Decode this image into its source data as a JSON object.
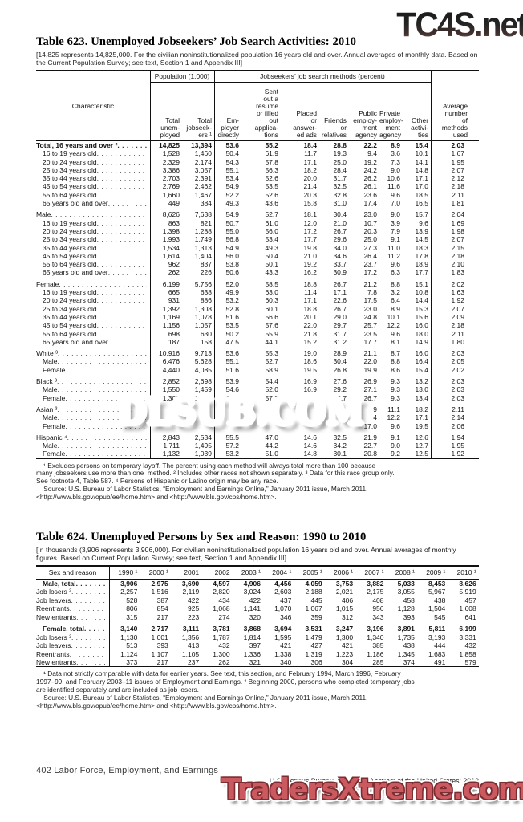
{
  "watermarks": {
    "top": "TC4S.net",
    "middle": "DLSUB.COM",
    "bottom": "TradersXtreme.com",
    "red_color": "#c41a20",
    "pink_color": "#cb5a60",
    "dark_color": "#242424"
  },
  "table623": {
    "title": "Table 623. Unemployed Jobseekers’ Job Search Activities: 2010",
    "subtitle": "[14,825 represents 14,825,000. For the civilian noninstitutionalized population 16 years old and over. Annual averages of monthly data. Based on the Current Population Survey; see text, Section 1 and Appendix III]",
    "header": {
      "characteristic": "Characteristic",
      "population_group": "Population (1,000)",
      "methods_group": "Jobseekers’ job search methods (percent)",
      "avg": "Average\nnumber\nof\nmethods\nused",
      "columns": [
        "Total\nunem-\nployed",
        "Total\njobseek-\ners ¹",
        "Em-\nployer\ndirectly",
        "Sent\nout a\nresume\nor filled\nout\napplica-\ntions",
        "Placed\nor\nanswer-\ned ads",
        "Friends\nor\nrelatives",
        "Public\nemploy-\nment\nagency",
        "Private\nemploy-\nment\nagency",
        "Other\nactivi-\nties"
      ]
    },
    "rows": [
      {
        "label": "Total, 16 years and over ²",
        "indent": 0,
        "bold": true,
        "values": [
          "14,825",
          "13,394",
          "53.6",
          "55.2",
          "18.4",
          "28.8",
          "22.2",
          "8.9",
          "15.4",
          "2.03"
        ]
      },
      {
        "label": "16 to 19 years old",
        "indent": 1,
        "values": [
          "1,528",
          "1,460",
          "50.4",
          "61.9",
          "11.7",
          "19.3",
          "9.4",
          "3.6",
          "10.1",
          "1.67"
        ]
      },
      {
        "label": "20 to 24 years old",
        "indent": 1,
        "values": [
          "2,329",
          "2,174",
          "54.3",
          "57.8",
          "17.1",
          "25.0",
          "19.2",
          "7.3",
          "14.1",
          "1.95"
        ]
      },
      {
        "label": "25 to 34 years old",
        "indent": 1,
        "values": [
          "3,386",
          "3,057",
          "55.1",
          "56.3",
          "18.2",
          "28.4",
          "24.2",
          "9.0",
          "14.8",
          "2.07"
        ]
      },
      {
        "label": "35 to 44 years old",
        "indent": 1,
        "values": [
          "2,703",
          "2,391",
          "53.4",
          "52.6",
          "20.0",
          "31.7",
          "26.2",
          "10.6",
          "17.1",
          "2.12"
        ]
      },
      {
        "label": "45 to 54 years old",
        "indent": 1,
        "values": [
          "2,769",
          "2,462",
          "54.9",
          "53.5",
          "21.4",
          "32.5",
          "26.1",
          "11.6",
          "17.0",
          "2.18"
        ]
      },
      {
        "label": "55 to 64 years old",
        "indent": 1,
        "values": [
          "1,660",
          "1,467",
          "52.2",
          "52.6",
          "20.3",
          "32.8",
          "23.6",
          "9.6",
          "18.5",
          "2.11"
        ]
      },
      {
        "label": "65 years old and over",
        "indent": 1,
        "values": [
          "449",
          "384",
          "49.3",
          "43.6",
          "15.8",
          "31.0",
          "17.4",
          "7.0",
          "16.5",
          "1.81"
        ]
      },
      {
        "label": "Male",
        "indent": 0,
        "gap": true,
        "values": [
          "8,626",
          "7,638",
          "54.9",
          "52.7",
          "18.1",
          "30.4",
          "23.0",
          "9.0",
          "15.7",
          "2.04"
        ]
      },
      {
        "label": "16 to 19 years old",
        "indent": 1,
        "values": [
          "863",
          "821",
          "50.7",
          "61.0",
          "12.0",
          "21.0",
          "10.7",
          "3.9",
          "9.6",
          "1.69"
        ]
      },
      {
        "label": "20 to 24 years old",
        "indent": 1,
        "values": [
          "1,398",
          "1,288",
          "55.0",
          "56.0",
          "17.2",
          "26.7",
          "20.3",
          "7.9",
          "13.9",
          "1.98"
        ]
      },
      {
        "label": "25 to 34 years old",
        "indent": 1,
        "values": [
          "1,993",
          "1,749",
          "56.8",
          "53.4",
          "17.7",
          "29.6",
          "25.0",
          "9.1",
          "14.5",
          "2.07"
        ]
      },
      {
        "label": "35 to 44 years old",
        "indent": 1,
        "values": [
          "1,534",
          "1,313",
          "54.9",
          "49.3",
          "19.8",
          "34.0",
          "27.3",
          "11.0",
          "18.3",
          "2.15"
        ]
      },
      {
        "label": "45 to 54 years old",
        "indent": 1,
        "values": [
          "1,614",
          "1,404",
          "56.0",
          "50.4",
          "21.0",
          "34.6",
          "26.4",
          "11.2",
          "17.8",
          "2.18"
        ]
      },
      {
        "label": "55 to 64 years old",
        "indent": 1,
        "values": [
          "962",
          "837",
          "53.8",
          "50.1",
          "19.2",
          "33.7",
          "23.7",
          "9.6",
          "18.9",
          "2.10"
        ]
      },
      {
        "label": "65 years old and over",
        "indent": 1,
        "values": [
          "262",
          "226",
          "50.6",
          "43.3",
          "16.2",
          "30.9",
          "17.2",
          "6.3",
          "17.7",
          "1.83"
        ]
      },
      {
        "label": "Female",
        "indent": 0,
        "gap": true,
        "values": [
          "6,199",
          "5,756",
          "52.0",
          "58.5",
          "18.8",
          "26.7",
          "21.2",
          "8.8",
          "15.1",
          "2.02"
        ]
      },
      {
        "label": "16 to 19 years old",
        "indent": 1,
        "values": [
          "665",
          "638",
          "49.9",
          "63.0",
          "11.4",
          "17.1",
          "7.8",
          "3.2",
          "10.8",
          "1.63"
        ]
      },
      {
        "label": "20 to 24 years old",
        "indent": 1,
        "values": [
          "931",
          "886",
          "53.2",
          "60.3",
          "17.1",
          "22.6",
          "17.5",
          "6.4",
          "14.4",
          "1.92"
        ]
      },
      {
        "label": "25 to 34 years old",
        "indent": 1,
        "values": [
          "1,392",
          "1,308",
          "52.8",
          "60.1",
          "18.8",
          "26.7",
          "23.0",
          "8.9",
          "15.3",
          "2.07"
        ]
      },
      {
        "label": "35 to 44 years old",
        "indent": 1,
        "values": [
          "1,169",
          "1,078",
          "51.6",
          "56.6",
          "20.1",
          "29.0",
          "24.8",
          "10.1",
          "15.6",
          "2.09"
        ]
      },
      {
        "label": "45 to 54 years old",
        "indent": 1,
        "values": [
          "1,156",
          "1,057",
          "53.5",
          "57.6",
          "22.0",
          "29.7",
          "25.7",
          "12.2",
          "16.0",
          "2.18"
        ]
      },
      {
        "label": "55 to 64 years old",
        "indent": 1,
        "values": [
          "698",
          "630",
          "50.2",
          "55.9",
          "21.8",
          "31.7",
          "23.5",
          "9.6",
          "18.0",
          "2.11"
        ]
      },
      {
        "label": "65 years old and over",
        "indent": 1,
        "values": [
          "187",
          "158",
          "47.5",
          "44.1",
          "15.2",
          "31.2",
          "17.7",
          "8.1",
          "14.9",
          "1.80"
        ]
      },
      {
        "label": "White ³",
        "indent": 0,
        "gap": true,
        "values": [
          "10,916",
          "9,713",
          "53.6",
          "55.3",
          "19.0",
          "28.9",
          "21.1",
          "8.7",
          "16.0",
          "2.03"
        ]
      },
      {
        "label": "Male",
        "indent": 1,
        "values": [
          "6,476",
          "5,628",
          "55.1",
          "52.7",
          "18.6",
          "30.4",
          "22.0",
          "8.8",
          "16.4",
          "2.05"
        ]
      },
      {
        "label": "Female",
        "indent": 1,
        "values": [
          "4,440",
          "4,085",
          "51.6",
          "58.9",
          "19.5",
          "26.8",
          "19.9",
          "8.6",
          "15.4",
          "2.02"
        ]
      },
      {
        "label": "Black ³",
        "indent": 0,
        "gap": true,
        "values": [
          "2,852",
          "2,698",
          "53.9",
          "54.4",
          "16.9",
          "27.6",
          "26.9",
          "9.3",
          "13.2",
          "2.03"
        ]
      },
      {
        "label": "Male",
        "indent": 1,
        "values": [
          "1,550",
          "1,459",
          "54.6",
          "52.0",
          "16.9",
          "29.2",
          "27.1",
          "9.3",
          "13.0",
          "2.03"
        ]
      },
      {
        "label": "Female",
        "indent": 1,
        "values": [
          "1,302",
          "1,239",
          "53.0",
          "57.2",
          "16.9",
          "25.7",
          "26.7",
          "9.3",
          "13.4",
          "2.03"
        ]
      },
      {
        "label": "Asian ³",
        "indent": 0,
        "gap": true,
        "values": [
          "",
          "",
          "",
          "",
          "",
          "",
          "9",
          "11.1",
          "18.2",
          "2.11"
        ]
      },
      {
        "label": "Male",
        "indent": 1,
        "values": [
          "",
          "",
          "",
          "",
          "",
          "",
          "4",
          "12.2",
          "17.1",
          "2.14"
        ]
      },
      {
        "label": "Female",
        "indent": 1,
        "values": [
          "",
          "",
          "",
          "",
          "",
          "",
          "17.0",
          "9.6",
          "19.5",
          "2.06"
        ]
      },
      {
        "label": "Hispanic ⁴",
        "indent": 0,
        "gap": true,
        "values": [
          "2,843",
          "2,534",
          "55.5",
          "47.0",
          "14.6",
          "32.5",
          "21.9",
          "9.1",
          "12.6",
          "1.94"
        ]
      },
      {
        "label": "Male",
        "indent": 1,
        "values": [
          "1,711",
          "1,495",
          "57.2",
          "44.2",
          "14.6",
          "34.2",
          "22.7",
          "9.0",
          "12.7",
          "1.95"
        ]
      },
      {
        "label": "Female",
        "indent": 1,
        "values": [
          "1,132",
          "1,039",
          "53.2",
          "51.0",
          "14.8",
          "30.1",
          "20.8",
          "9.2",
          "12.5",
          "1.92"
        ]
      }
    ],
    "footnotes": "    ¹ Excludes persons on temporary layoff. The percent using each method will always total more than 100 because\nmany jobseekers use more than one  method. ² Includes other races not shown separately. ³ Data for this race group only.\nSee footnote 4, Table 587. ⁴ Persons of Hispanic or Latino origin may be any race.\n    Source: U.S. Bureau of Labor Statistics, “Employment and Earnings Online,” January 2011 issue, March 2011,\n<http://www.bls.gov/opub/ee/home.htm> and <http://www.bls.gov/cps/home.htm>."
  },
  "table624": {
    "title": "Table 624. Unemployed Persons by Sex and Reason: 1990 to 2010",
    "subtitle": "[In thousands (3,906 represents 3,906,000). For civilian noninstitutionalized population 16 years old and over. Annual averages of monthly figures. Based on Current Population Survey; see text, Section 1 and Appendix III]",
    "header": {
      "sex_and_reason": "Sex and reason",
      "years": [
        "1990 ¹",
        "2000 ¹",
        "2001",
        "2002",
        "2003 ¹",
        "2004 ¹",
        "2005 ¹",
        "2006 ¹",
        "2007 ¹",
        "2008 ¹",
        "2009 ¹",
        "2010 ¹"
      ]
    },
    "rows": [
      {
        "label": "Male, total",
        "indent": 1,
        "bold": true,
        "values": [
          "3,906",
          "2,975",
          "3,690",
          "4,597",
          "4,906",
          "4,456",
          "4,059",
          "3,753",
          "3,882",
          "5,033",
          "8,453",
          "8,626"
        ]
      },
      {
        "label": "Job losers ²",
        "indent": 0,
        "values": [
          "2,257",
          "1,516",
          "2,119",
          "2,820",
          "3,024",
          "2,603",
          "2,188",
          "2,021",
          "2,175",
          "3,055",
          "5,967",
          "5,919"
        ]
      },
      {
        "label": "Job leavers",
        "indent": 0,
        "values": [
          "528",
          "387",
          "422",
          "434",
          "422",
          "437",
          "445",
          "406",
          "408",
          "458",
          "438",
          "457"
        ]
      },
      {
        "label": "Reentrants",
        "indent": 0,
        "values": [
          "806",
          "854",
          "925",
          "1,068",
          "1,141",
          "1,070",
          "1,067",
          "1,015",
          "956",
          "1,128",
          "1,504",
          "1,608"
        ]
      },
      {
        "label": "New entrants",
        "indent": 0,
        "values": [
          "315",
          "217",
          "223",
          "274",
          "320",
          "346",
          "359",
          "312",
          "343",
          "393",
          "545",
          "641"
        ]
      },
      {
        "label": "Female, total",
        "indent": 1,
        "bold": true,
        "gap": true,
        "values": [
          "3,140",
          "2,717",
          "3,111",
          "3,781",
          "3,868",
          "3,694",
          "3,531",
          "3,247",
          "3,196",
          "3,891",
          "5,811",
          "6,199"
        ]
      },
      {
        "label": "Job losers ²",
        "indent": 0,
        "values": [
          "1,130",
          "1,001",
          "1,356",
          "1,787",
          "1,814",
          "1,595",
          "1,479",
          "1,300",
          "1,340",
          "1,735",
          "3,193",
          "3,331"
        ]
      },
      {
        "label": "Job leavers",
        "indent": 0,
        "values": [
          "513",
          "393",
          "413",
          "432",
          "397",
          "421",
          "427",
          "421",
          "385",
          "438",
          "444",
          "432"
        ]
      },
      {
        "label": "Reentrants",
        "indent": 0,
        "values": [
          "1,124",
          "1,107",
          "1,105",
          "1,300",
          "1,336",
          "1,338",
          "1,319",
          "1,223",
          "1,186",
          "1,345",
          "1,683",
          "1,858"
        ]
      },
      {
        "label": "New entrants",
        "indent": 0,
        "values": [
          "373",
          "217",
          "237",
          "262",
          "321",
          "340",
          "306",
          "304",
          "285",
          "374",
          "491",
          "579"
        ]
      }
    ],
    "footnotes": "    ¹ Data not strictly comparable with data for earlier years. See text, this section, and February 1994, March 1996, February\n1997–99, and February 2003–11 issues of Employment and Earnings. ² Beginning 2000, persons who completed temporary jobs\nare identified separately and are included as job losers.\n    Source: U.S. Bureau of Labor Statistics, “Employment and Earnings Online,” January 2011 issue, March 2011,\n<http://www.bls.gov/opub/ee/home.htm> and <http://www.bls.gov/cps/home.htm>."
  },
  "footer": {
    "left": "402   Labor Force, Employment, and Earnings",
    "right": "U.S. Census Bureau, Statistical Abstract of the United States: 2012"
  }
}
